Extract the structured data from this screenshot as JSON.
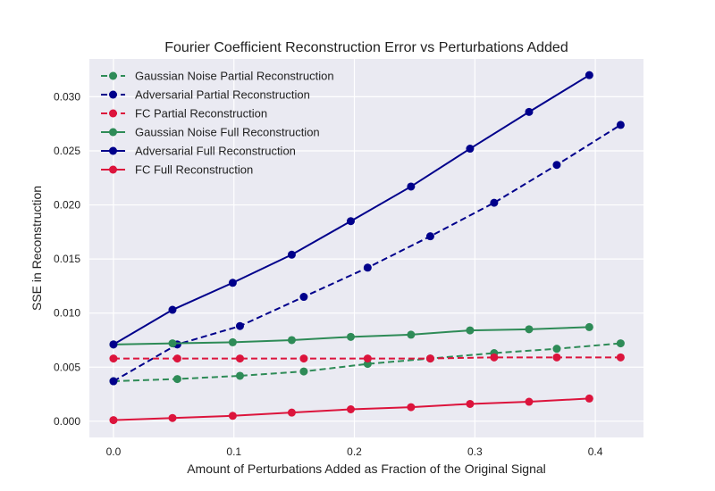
{
  "chart_data": {
    "type": "line",
    "title": "Fourier Coefficient Reconstruction Error vs Perturbations Added",
    "xlabel": "Amount of Perturbations Added as Fraction of the Original Signal",
    "ylabel": "SSE in Reconstruction",
    "xlim": [
      -0.02,
      0.44
    ],
    "ylim": [
      -0.0015,
      0.0335
    ],
    "x_ticks": [
      0.0,
      0.1,
      0.2,
      0.3,
      0.4
    ],
    "x_tick_labels": [
      "0.0",
      "0.1",
      "0.2",
      "0.3",
      "0.4"
    ],
    "y_ticks": [
      0.0,
      0.005,
      0.01,
      0.015,
      0.02,
      0.025,
      0.03
    ],
    "y_tick_labels": [
      "0.000",
      "0.005",
      "0.010",
      "0.015",
      "0.020",
      "0.025",
      "0.030"
    ],
    "grid": true,
    "legend_position": "top-left",
    "background_color": "#EAEAF2",
    "series": [
      {
        "name": "Gaussian Noise Partial Reconstruction",
        "color": "#2E8B57",
        "linestyle": "dashed",
        "x": [
          0.0,
          0.053,
          0.105,
          0.158,
          0.211,
          0.263,
          0.316,
          0.368,
          0.421
        ],
        "y": [
          0.0037,
          0.0039,
          0.0042,
          0.0046,
          0.0053,
          0.0058,
          0.0063,
          0.0067,
          0.0072
        ]
      },
      {
        "name": "Adversarial Partial Reconstruction",
        "color": "#00008B",
        "linestyle": "dashed",
        "x": [
          0.0,
          0.053,
          0.105,
          0.158,
          0.211,
          0.263,
          0.316,
          0.368,
          0.421
        ],
        "y": [
          0.0037,
          0.0071,
          0.0088,
          0.0115,
          0.0142,
          0.0171,
          0.0202,
          0.0237,
          0.0274
        ]
      },
      {
        "name": "FC Partial Reconstruction",
        "color": "#DC143C",
        "linestyle": "dashed",
        "x": [
          0.0,
          0.053,
          0.105,
          0.158,
          0.211,
          0.263,
          0.316,
          0.368,
          0.421
        ],
        "y": [
          0.0058,
          0.0058,
          0.0058,
          0.0058,
          0.0058,
          0.0058,
          0.0059,
          0.0059,
          0.0059
        ]
      },
      {
        "name": "Gaussian Noise Full Reconstruction",
        "color": "#2E8B57",
        "linestyle": "solid",
        "x": [
          0.0,
          0.049,
          0.099,
          0.148,
          0.197,
          0.247,
          0.296,
          0.345,
          0.395
        ],
        "y": [
          0.0071,
          0.0072,
          0.0073,
          0.0075,
          0.0078,
          0.008,
          0.0084,
          0.0085,
          0.0087
        ]
      },
      {
        "name": "Adversarial Full Reconstruction",
        "color": "#00008B",
        "linestyle": "solid",
        "x": [
          0.0,
          0.049,
          0.099,
          0.148,
          0.197,
          0.247,
          0.296,
          0.345,
          0.395
        ],
        "y": [
          0.0071,
          0.0103,
          0.0128,
          0.0154,
          0.0185,
          0.0217,
          0.0252,
          0.0286,
          0.032
        ]
      },
      {
        "name": "FC Full Reconstruction",
        "color": "#DC143C",
        "linestyle": "solid",
        "x": [
          0.0,
          0.049,
          0.099,
          0.148,
          0.197,
          0.247,
          0.296,
          0.345,
          0.395
        ],
        "y": [
          0.0001,
          0.0003,
          0.0005,
          0.0008,
          0.0011,
          0.0013,
          0.0016,
          0.0018,
          0.0021
        ]
      }
    ]
  }
}
